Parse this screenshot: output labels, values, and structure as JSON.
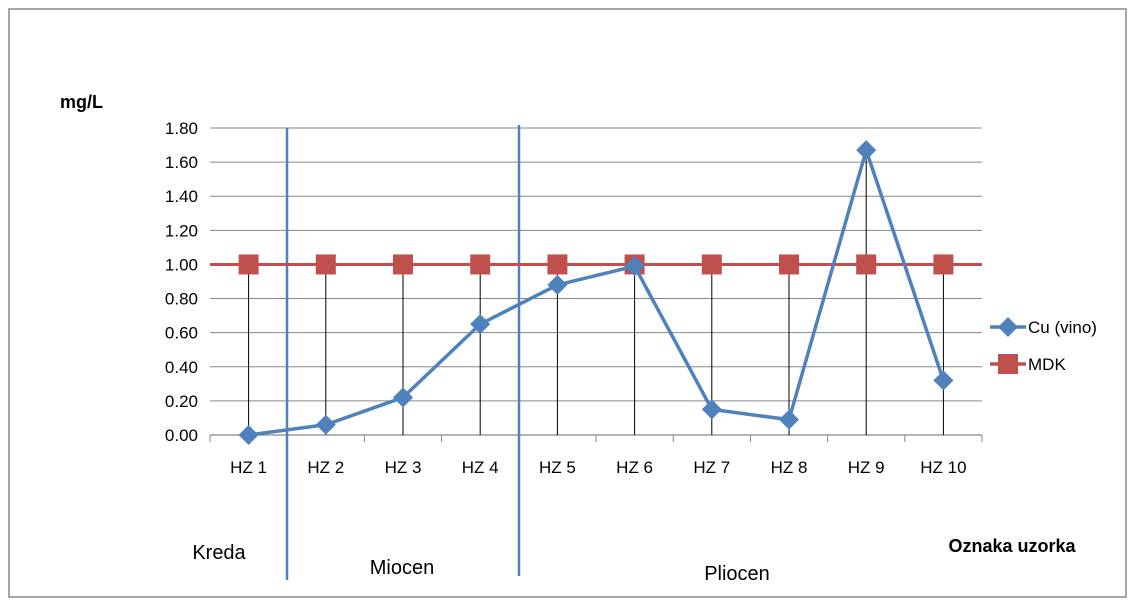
{
  "chart_data": {
    "type": "line",
    "ylabel": "mg/L",
    "xlabel": "Oznaka uzorka",
    "categories": [
      "HZ 1",
      "HZ 2",
      "HZ 3",
      "HZ 4",
      "HZ 5",
      "HZ 6",
      "HZ 7",
      "HZ 8",
      "HZ 9",
      "HZ 10"
    ],
    "ylim": [
      0,
      1.8
    ],
    "yticks": [
      "0.00",
      "0.20",
      "0.40",
      "0.60",
      "0.80",
      "1.00",
      "1.20",
      "1.40",
      "1.60",
      "1.80"
    ],
    "series": [
      {
        "name": "Cu (vino)",
        "values": [
          0.0,
          0.06,
          0.22,
          0.65,
          0.88,
          0.99,
          0.15,
          0.09,
          1.67,
          0.32
        ],
        "color": "#4F81BD",
        "marker": "diamond"
      },
      {
        "name": "MDK",
        "values": [
          1.0,
          1.0,
          1.0,
          1.0,
          1.0,
          1.0,
          1.0,
          1.0,
          1.0,
          1.0
        ],
        "color": "#C0504D",
        "marker": "square"
      }
    ],
    "drop_lines": true,
    "grid": "horizontal",
    "legend_position": "right",
    "period_labels": [
      "Kreda",
      "Miocen",
      "Pliocen"
    ],
    "period_divider_color": "#4F81BD"
  }
}
